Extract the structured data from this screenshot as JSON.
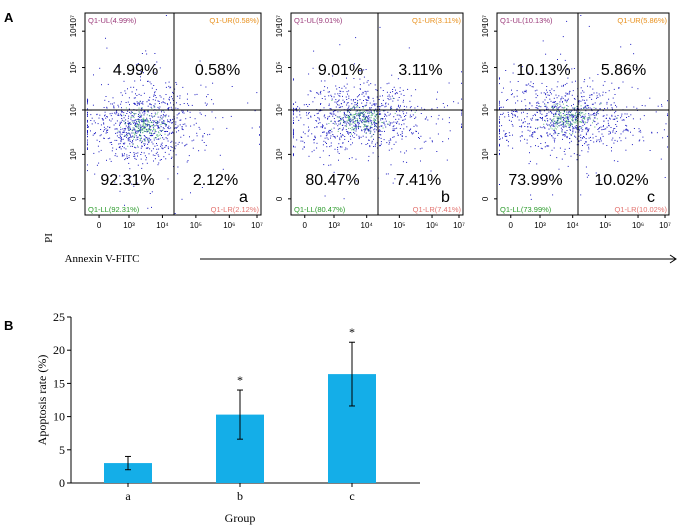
{
  "panel_a": {
    "letter": "A",
    "ylabel": "PI",
    "xlabel": "Annexin V-FITC",
    "tick_labels": [
      "0",
      "10³",
      "10⁴",
      "10⁵",
      "10⁶",
      "10⁷"
    ],
    "colors": {
      "ul": "#9b3a7a",
      "ur": "#e8901c",
      "ll": "#2a9a2a",
      "lr": "#e3736f",
      "dots": "#1c1cc0"
    },
    "plots": [
      {
        "letter": "a",
        "tags": {
          "ul": "Q1-UL(4.99%)",
          "ur": "Q1-UR(0.58%)",
          "ll": "Q1-LL(92.31%)",
          "lr": "Q1-LR(2.12%)"
        },
        "values": {
          "ul": "4.99%",
          "ur": "0.58%",
          "ll": "92.31%",
          "lr": "2.12%"
        }
      },
      {
        "letter": "b",
        "tags": {
          "ul": "Q1-UL(9.01%)",
          "ur": "Q1-UR(3.11%)",
          "ll": "Q1-LL(80.47%)",
          "lr": "Q1-LR(7.41%)"
        },
        "values": {
          "ul": "9.01%",
          "ur": "3.11%",
          "ll": "80.47%",
          "lr": "7.41%"
        }
      },
      {
        "letter": "c",
        "tags": {
          "ul": "Q1-UL(10.13%)",
          "ur": "Q1-UR(5.86%)",
          "ll": "Q1-LL(73.99%)",
          "lr": "Q1-LR(10.02%)"
        },
        "values": {
          "ul": "10.13%",
          "ur": "5.86%",
          "ll": "73.99%",
          "lr": "10.02%"
        }
      }
    ]
  },
  "chart_data": {
    "type": "bar",
    "letter": "B",
    "categories": [
      "a",
      "b",
      "c"
    ],
    "values": [
      3.0,
      10.3,
      16.4
    ],
    "error": [
      1.0,
      3.7,
      4.8
    ],
    "significance": [
      "",
      "*",
      "*"
    ],
    "xlabel": "Group",
    "ylabel": "Apoptosis rate (%)",
    "ylim": [
      0,
      25
    ],
    "yticks": [
      0,
      5,
      10,
      15,
      20,
      25
    ],
    "bar_color": "#14aee8",
    "grid": false
  }
}
